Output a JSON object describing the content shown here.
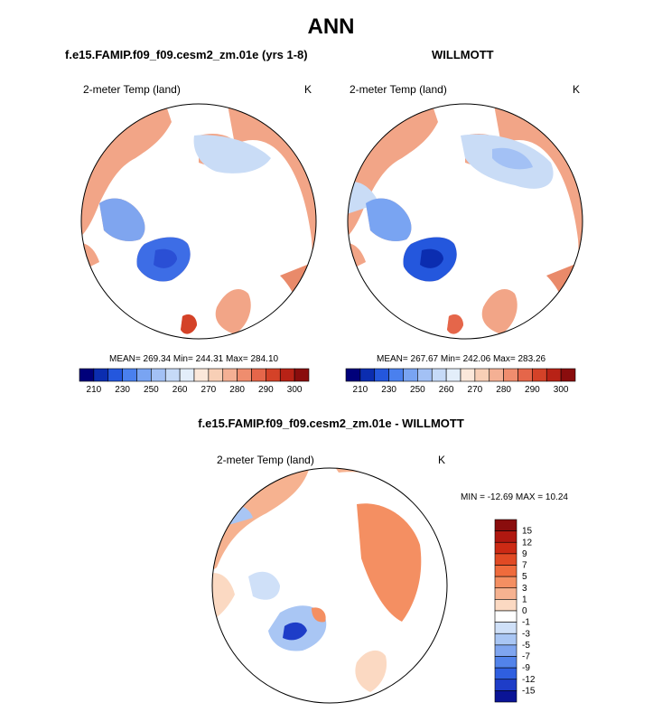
{
  "title": "ANN",
  "panels": [
    {
      "header": "f.e15.FAMIP.f09_f09.cesm2_zm.01e (yrs 1-8)",
      "variable": "2-meter Temp (land)",
      "units": "K",
      "stats": "MEAN= 269.34  Min= 244.31  Max= 284.10"
    },
    {
      "header": "WILLMOTT",
      "variable": "2-meter Temp (land)",
      "units": "K",
      "stats": "MEAN= 267.67  Min= 242.06  Max= 283.26"
    }
  ],
  "diff_panel": {
    "header": "f.e15.FAMIP.f09_f09.cesm2_zm.01e - WILLMOTT",
    "variable": "2-meter Temp (land)",
    "units": "K",
    "stats": "MIN = -12.69 MAX =  10.24"
  },
  "colorbar_abs": {
    "tick_labels": [
      "210",
      "230",
      "250",
      "260",
      "270",
      "280",
      "290",
      "300"
    ],
    "colors": [
      "#00007a",
      "#0b2db0",
      "#2457dd",
      "#4a80ee",
      "#79a4f2",
      "#a3c1f5",
      "#c6daf7",
      "#e3eefa",
      "#fbe8da",
      "#f8cfb6",
      "#f4b094",
      "#ef8d6e",
      "#e5664a",
      "#d44228",
      "#b82216",
      "#8a0d0d"
    ]
  },
  "colorbar_diff": {
    "tick_labels": [
      "15",
      "12",
      "9",
      "7",
      "5",
      "3",
      "1",
      "0",
      "-1",
      "-3",
      "-5",
      "-7",
      "-9",
      "-12",
      "-15"
    ],
    "colors": [
      "#8a0d0d",
      "#b01810",
      "#cc2a14",
      "#e14a24",
      "#ef6b3c",
      "#f48f62",
      "#f6b290",
      "#fbd9c2",
      "#ffffff",
      "#cfe0f8",
      "#a9c6f4",
      "#7fa5ef",
      "#5283ea",
      "#2f5fe0",
      "#1e3dc8",
      "#0a1496"
    ]
  },
  "colors": {
    "land_warm": "#f2a587",
    "land_warm_dark": "#e98a6a",
    "land_warm_light": "#f6c3a8",
    "land_cold": "#c9dcf6",
    "greenland": "#3d6de6",
    "greenland_deep": "#2a4fd5",
    "coast": "#000000"
  }
}
